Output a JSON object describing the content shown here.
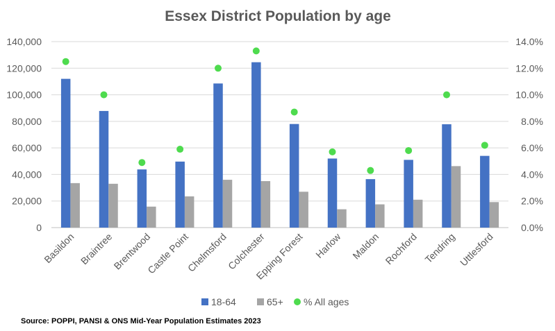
{
  "chart_data": {
    "type": "bar",
    "title": "Essex District Population by age",
    "categories": [
      "Basildon",
      "Braintree",
      "Brentwood",
      "Castle Point",
      "Chelmsford",
      "Colchester",
      "Epping Forest",
      "Harlow",
      "Maldon",
      "Rochford",
      "Tendring",
      "Uttlesford"
    ],
    "series": [
      {
        "name": "18-64",
        "kind": "bar",
        "axis": "left",
        "color": "#4472c4",
        "values": [
          112000,
          87800,
          43800,
          49700,
          108500,
          124500,
          78000,
          52000,
          36500,
          51000,
          77800,
          54000
        ]
      },
      {
        "name": "65+",
        "kind": "bar",
        "axis": "left",
        "color": "#a5a5a5",
        "values": [
          33500,
          33000,
          15800,
          23500,
          36000,
          35000,
          27000,
          13800,
          17500,
          21000,
          46300,
          19200
        ]
      },
      {
        "name": "% All ages",
        "kind": "marker",
        "axis": "right",
        "color": "#4edb4e",
        "values": [
          12.5,
          10.0,
          4.9,
          5.9,
          12.0,
          13.3,
          8.7,
          5.7,
          4.3,
          5.8,
          10.0,
          6.2
        ]
      }
    ],
    "y_left": {
      "min": 0,
      "max": 140000,
      "step": 20000,
      "tick_labels": [
        "0",
        "20,000",
        "40,000",
        "60,000",
        "80,000",
        "100,000",
        "120,000",
        "140,000"
      ]
    },
    "y_right": {
      "min": 0,
      "max": 14,
      "step": 2,
      "tick_labels": [
        "0.0%",
        "2.0%",
        "4.0%",
        "6.0%",
        "8.0%",
        "10.0%",
        "12.0%",
        "14.0%"
      ]
    },
    "grid": true,
    "legend": "bottom"
  },
  "source_note": "Source: POPPI, PANSI & ONS Mid-Year Population Estimates 2023"
}
